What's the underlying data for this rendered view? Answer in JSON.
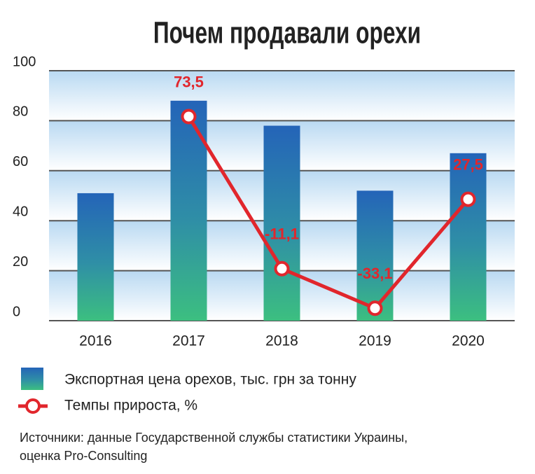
{
  "chart_data": {
    "type": "bar-line",
    "title": "Почем продавали орехи",
    "categories": [
      "2016",
      "2017",
      "2018",
      "2019",
      "2020"
    ],
    "series": [
      {
        "name": "Экспортная цена орехов, тыс. грн за тонну",
        "type": "bar",
        "color": "#2a68b6",
        "values": [
          51,
          88,
          78,
          52,
          67
        ]
      },
      {
        "name": "Темпы прироста, %",
        "type": "line",
        "axis": "y2",
        "color": "#e1262c",
        "values": [
          null,
          73.5,
          -11.1,
          -33.1,
          27.5
        ],
        "value_labels": [
          null,
          "73,5",
          "-11,1",
          "-33,1",
          "27,5"
        ]
      }
    ],
    "ylim": [
      0,
      100
    ],
    "yticks": [
      0,
      20,
      40,
      60,
      80,
      100
    ],
    "y2lim": [
      -40,
      99
    ],
    "grid": true,
    "notes": [
      "Источники: данные Государственной службы статистики Украины,",
      "оценка Pro-Consulting"
    ]
  }
}
